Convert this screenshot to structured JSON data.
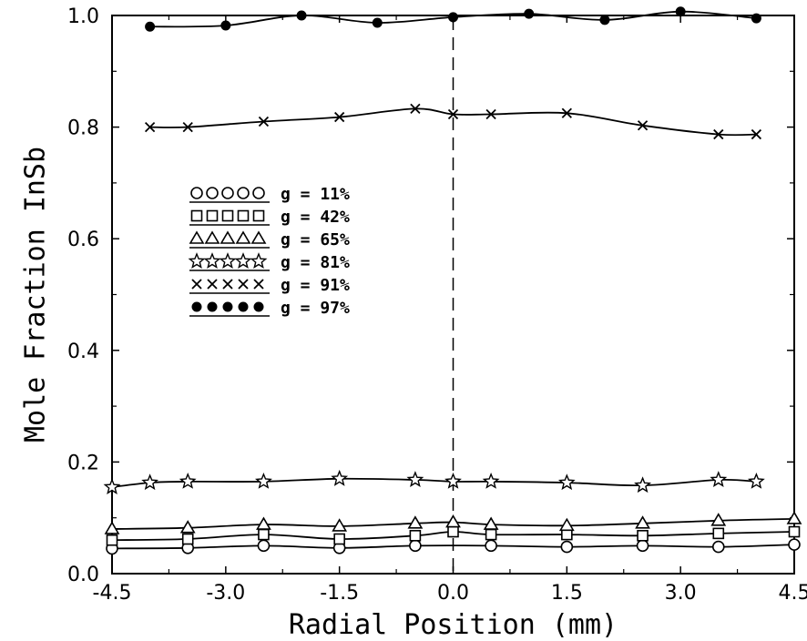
{
  "chart_data": {
    "type": "line",
    "xlabel": "Radial Position (mm)",
    "ylabel": "Mole Fraction InSb",
    "xlim": [
      -4.5,
      4.5
    ],
    "ylim": [
      0.0,
      1.0
    ],
    "x_ticks": [
      -4.5,
      -3.0,
      -1.5,
      0.0,
      1.5,
      3.0,
      4.5
    ],
    "x_tick_labels": [
      "-4.5",
      "-3.0",
      "-1.5",
      "0.0",
      "1.5",
      "3.0",
      "4.5"
    ],
    "y_ticks": [
      0.0,
      0.2,
      0.4,
      0.6,
      0.8,
      1.0
    ],
    "y_tick_labels": [
      "0.0",
      "0.2",
      "0.4",
      "0.6",
      "0.8",
      "1.0"
    ],
    "grid": false,
    "reference_line": {
      "x": 0.0,
      "style": "dashed"
    },
    "legend_position": "upper-left",
    "series": [
      {
        "name": "g = 11%",
        "marker": "circle",
        "x": [
          -4.5,
          -3.5,
          -2.5,
          -1.5,
          -0.5,
          0.5,
          1.5,
          2.5,
          3.5,
          4.5
        ],
        "y": [
          0.045,
          0.046,
          0.05,
          0.046,
          0.05,
          0.05,
          0.048,
          0.05,
          0.048,
          0.052
        ]
      },
      {
        "name": "g = 42%",
        "marker": "square",
        "x": [
          -4.5,
          -3.5,
          -2.5,
          -1.5,
          -0.5,
          0.0,
          0.5,
          1.5,
          2.5,
          3.5,
          4.5
        ],
        "y": [
          0.06,
          0.062,
          0.07,
          0.062,
          0.068,
          0.075,
          0.07,
          0.07,
          0.068,
          0.072,
          0.075
        ]
      },
      {
        "name": "g = 65%",
        "marker": "triangle",
        "x": [
          -4.5,
          -3.5,
          -2.5,
          -1.5,
          -0.5,
          0.0,
          0.5,
          1.5,
          2.5,
          3.5,
          4.5
        ],
        "y": [
          0.08,
          0.082,
          0.088,
          0.085,
          0.09,
          0.092,
          0.088,
          0.086,
          0.09,
          0.095,
          0.098
        ]
      },
      {
        "name": "g = 81%",
        "marker": "star",
        "x": [
          -4.5,
          -4.0,
          -3.5,
          -2.5,
          -1.5,
          -0.5,
          0.0,
          0.5,
          1.5,
          2.5,
          3.5,
          4.0
        ],
        "y": [
          0.155,
          0.163,
          0.165,
          0.165,
          0.17,
          0.168,
          0.165,
          0.165,
          0.163,
          0.158,
          0.168,
          0.165
        ]
      },
      {
        "name": "g = 91%",
        "marker": "x",
        "x": [
          -4.0,
          -3.5,
          -2.5,
          -1.5,
          -0.5,
          0.0,
          0.5,
          1.5,
          2.5,
          3.5,
          4.0
        ],
        "y": [
          0.8,
          0.8,
          0.81,
          0.818,
          0.833,
          0.823,
          0.823,
          0.825,
          0.803,
          0.787,
          0.787
        ]
      },
      {
        "name": "g = 97%",
        "marker": "filled-circle",
        "x": [
          -4.0,
          -3.0,
          -2.0,
          -1.0,
          0.0,
          1.0,
          2.0,
          3.0,
          4.0
        ],
        "y": [
          0.98,
          0.982,
          1.0,
          0.987,
          0.997,
          1.003,
          0.992,
          1.007,
          0.995
        ]
      }
    ]
  }
}
